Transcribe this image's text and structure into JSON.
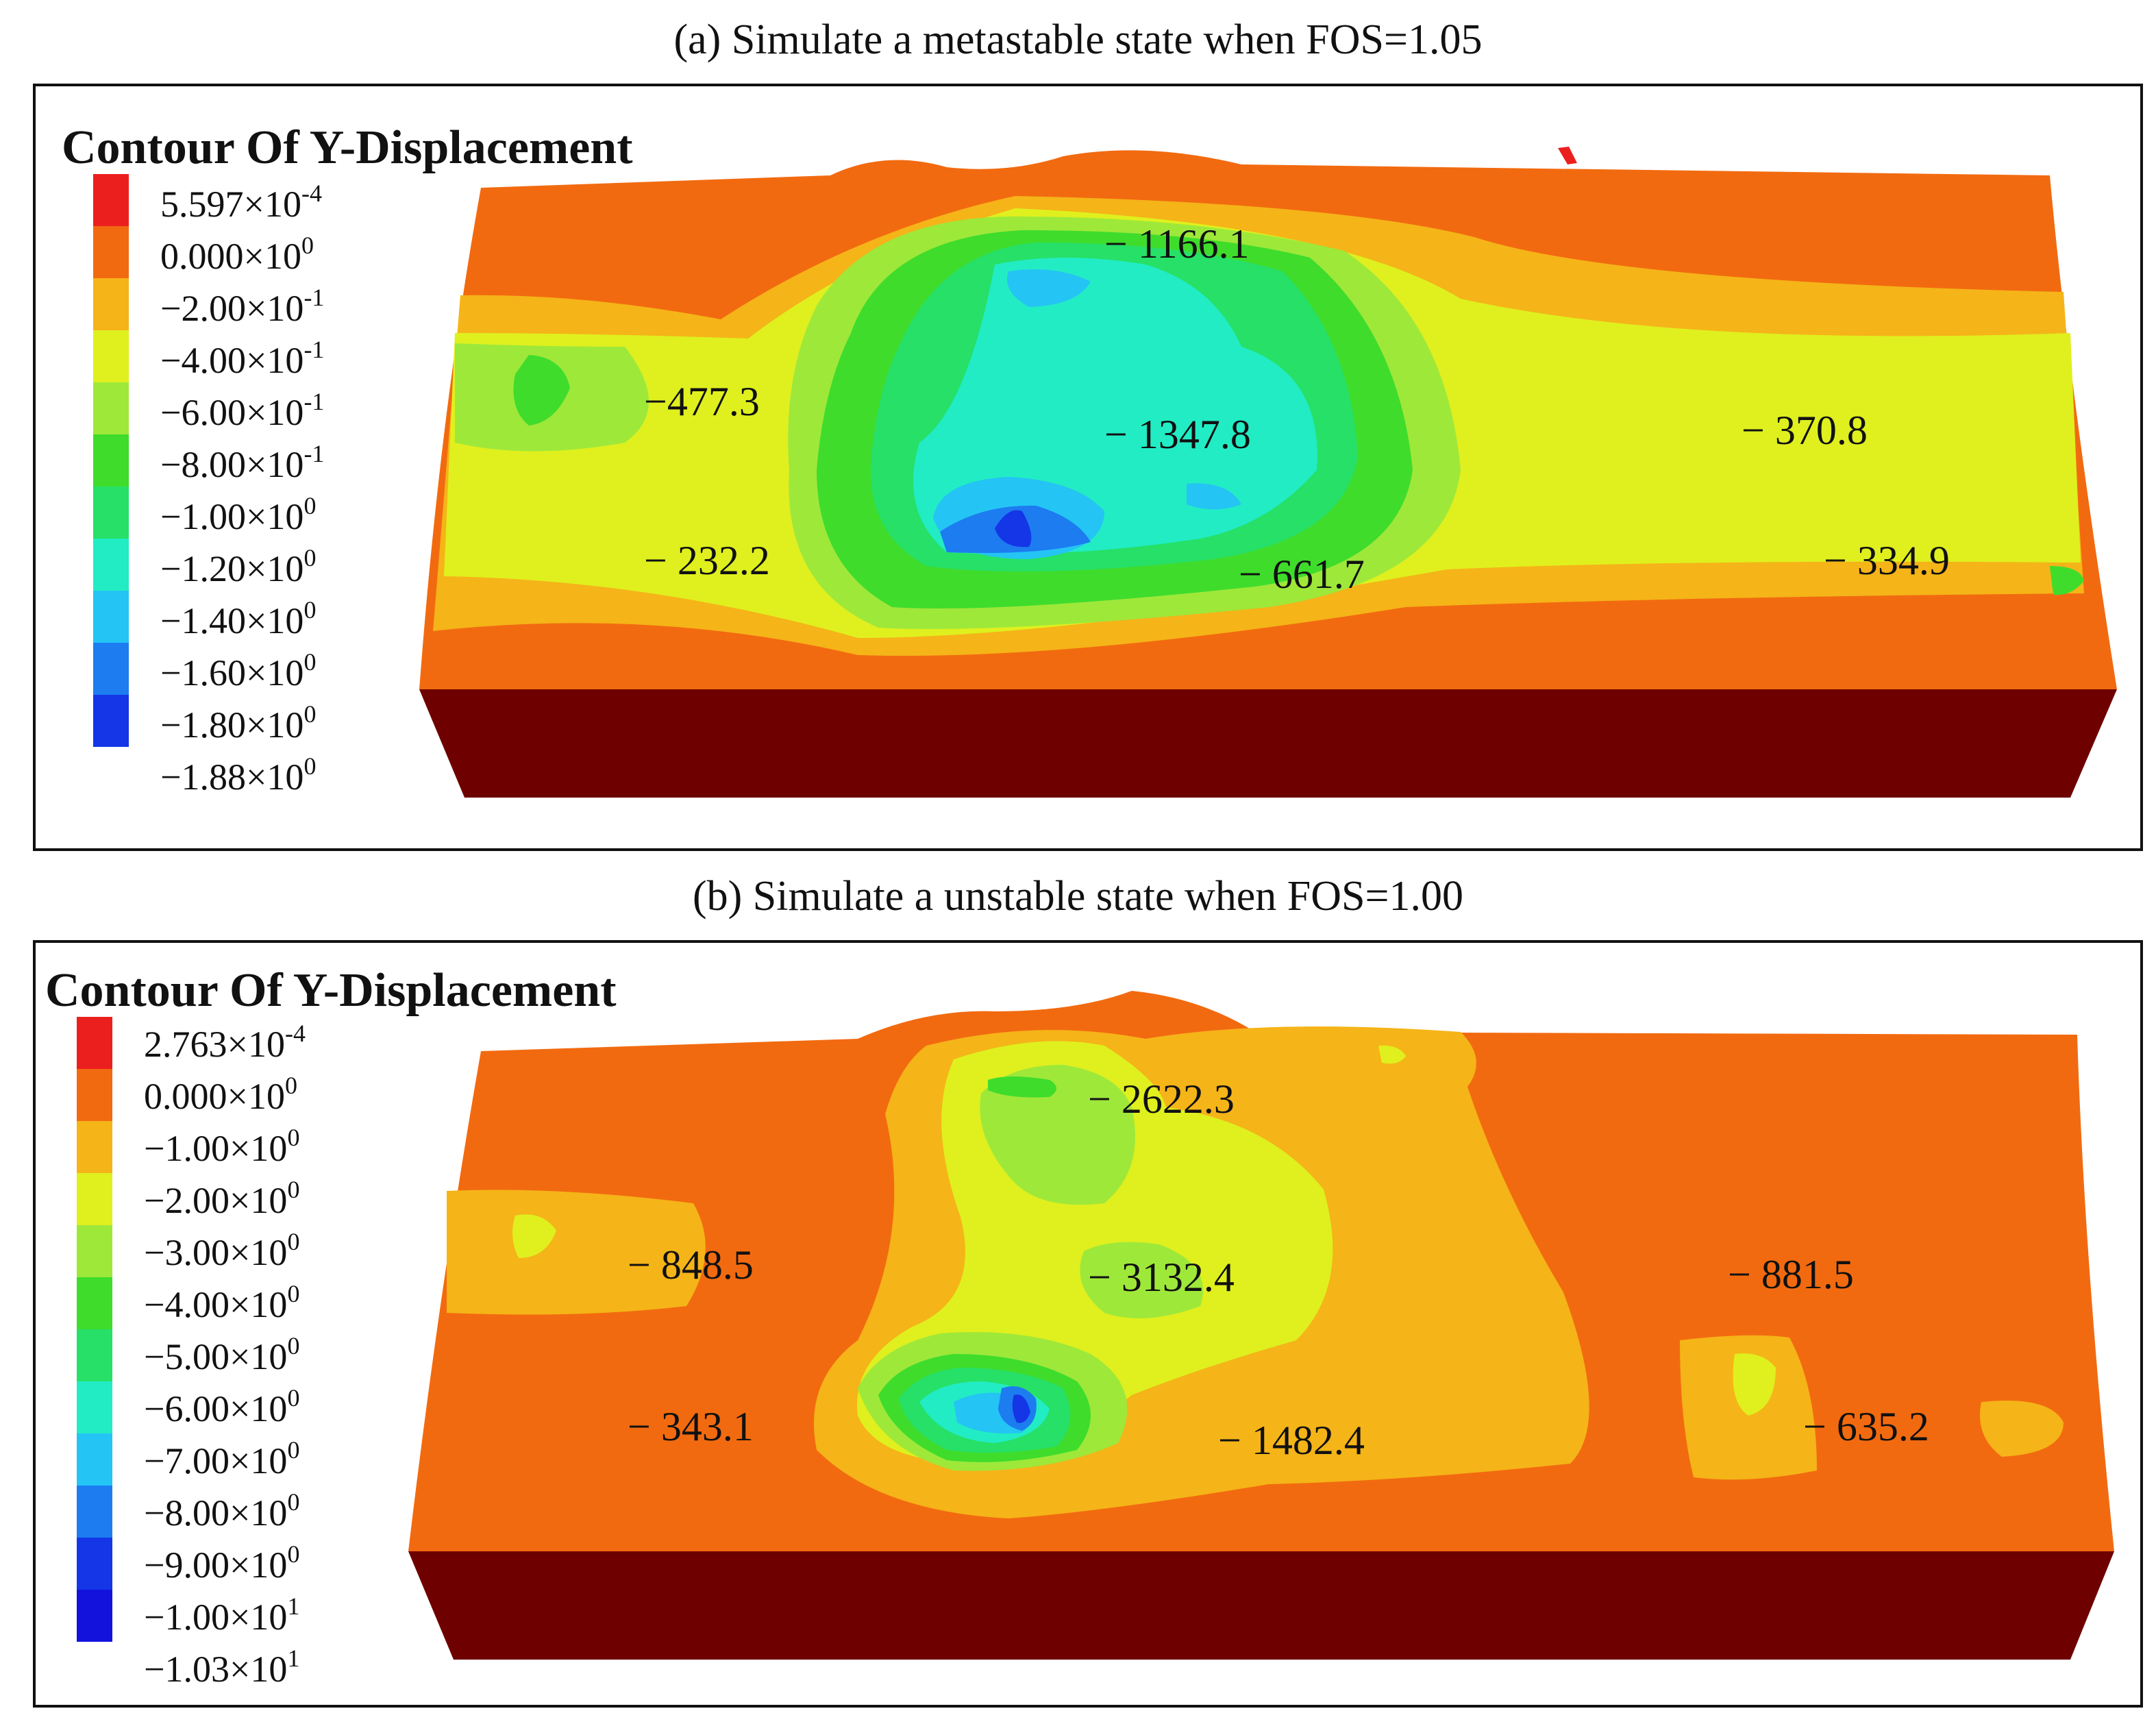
{
  "panels": [
    {
      "caption": "(a) Simulate a metastable state when FOS=1.05",
      "legend": {
        "title": "Contour Of Y-Displacement",
        "entries": [
          {
            "mantissa": "5.597",
            "exponent": "-4",
            "color": "#ec1f1f"
          },
          {
            "mantissa": "0.000",
            "exponent": "0",
            "color": "#f26a10"
          },
          {
            "mantissa": "−2.00",
            "exponent": "-1",
            "color": "#f5b418"
          },
          {
            "mantissa": "−4.00",
            "exponent": "-1",
            "color": "#dff01e"
          },
          {
            "mantissa": "−6.00",
            "exponent": "-1",
            "color": "#9ee83a"
          },
          {
            "mantissa": "−8.00",
            "exponent": "-1",
            "color": "#3fdc2c"
          },
          {
            "mantissa": "−1.00",
            "exponent": "0",
            "color": "#26e068"
          },
          {
            "mantissa": "−1.20",
            "exponent": "0",
            "color": "#22ecc4"
          },
          {
            "mantissa": "−1.40",
            "exponent": "0",
            "color": "#24c4f4"
          },
          {
            "mantissa": "−1.60",
            "exponent": "0",
            "color": "#1c7cf0"
          },
          {
            "mantissa": "−1.80",
            "exponent": "0",
            "color": "#1436e6"
          },
          {
            "mantissa": "−1.88",
            "exponent": "0",
            "color": "#1212dc"
          }
        ]
      },
      "annotations": [
        "− 1166.1",
        "−477.3",
        "− 1347.8",
        "− 370.8",
        "− 232.2",
        "− 661.7",
        "− 334.9"
      ]
    },
    {
      "caption": "(b) Simulate a unstable state when FOS=1.00",
      "legend": {
        "title": "Contour Of Y-Displacement",
        "entries": [
          {
            "mantissa": "2.763",
            "exponent": "-4",
            "color": "#ec1f1f"
          },
          {
            "mantissa": "0.000",
            "exponent": "0",
            "color": "#f26a10"
          },
          {
            "mantissa": "−1.00",
            "exponent": "0",
            "color": "#f5b418"
          },
          {
            "mantissa": "−2.00",
            "exponent": "0",
            "color": "#dff01e"
          },
          {
            "mantissa": "−3.00",
            "exponent": "0",
            "color": "#9ee83a"
          },
          {
            "mantissa": "−4.00",
            "exponent": "0",
            "color": "#3fdc2c"
          },
          {
            "mantissa": "−5.00",
            "exponent": "0",
            "color": "#26e068"
          },
          {
            "mantissa": "−6.00",
            "exponent": "0",
            "color": "#22ecc4"
          },
          {
            "mantissa": "−7.00",
            "exponent": "0",
            "color": "#24c4f4"
          },
          {
            "mantissa": "−8.00",
            "exponent": "0",
            "color": "#1c7cf0"
          },
          {
            "mantissa": "−9.00",
            "exponent": "0",
            "color": "#1436e6"
          },
          {
            "mantissa": "−1.00",
            "exponent": "1",
            "color": "#1212dc"
          },
          {
            "mantissa": "−1.03",
            "exponent": "1",
            "color": "#1212dc"
          }
        ]
      },
      "annotations": [
        "− 2622.3",
        "− 848.5",
        "− 3132.4",
        "− 881.5",
        "− 343.1",
        "− 1482.4",
        "− 635.2"
      ]
    }
  ],
  "multiply_sign": "×10",
  "base_color": "#6e0000"
}
